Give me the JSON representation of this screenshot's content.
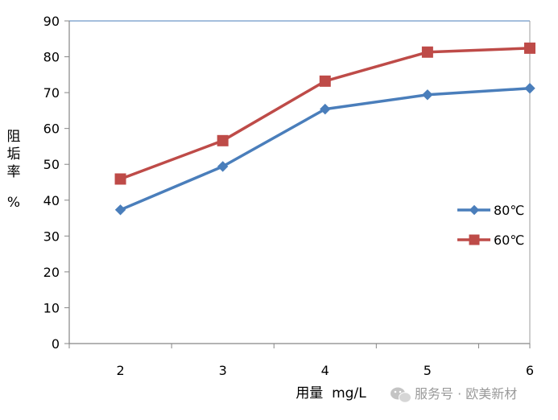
{
  "chart_data": {
    "type": "line",
    "title": "",
    "x": [
      2,
      3,
      4,
      5,
      6
    ],
    "xlabel": "用量  mg/L",
    "ylabel_chars": [
      "阻",
      "垢",
      "率",
      "%"
    ],
    "ylim": [
      0,
      90
    ],
    "yticks": [
      0,
      10,
      20,
      30,
      40,
      50,
      60,
      70,
      80,
      90
    ],
    "grid": false,
    "legend_position": "right",
    "series": [
      {
        "name": "80℃",
        "values": [
          37.3,
          49.4,
          65.4,
          69.4,
          71.2
        ],
        "color": "#4a7ebb",
        "marker": "diamond"
      },
      {
        "name": "60℃",
        "values": [
          45.9,
          56.6,
          73.2,
          81.3,
          82.4
        ],
        "color": "#be4b48",
        "marker": "square"
      }
    ]
  },
  "watermark": {
    "text": "服务号 · 欧美新材",
    "icon": "wechat-icon"
  }
}
